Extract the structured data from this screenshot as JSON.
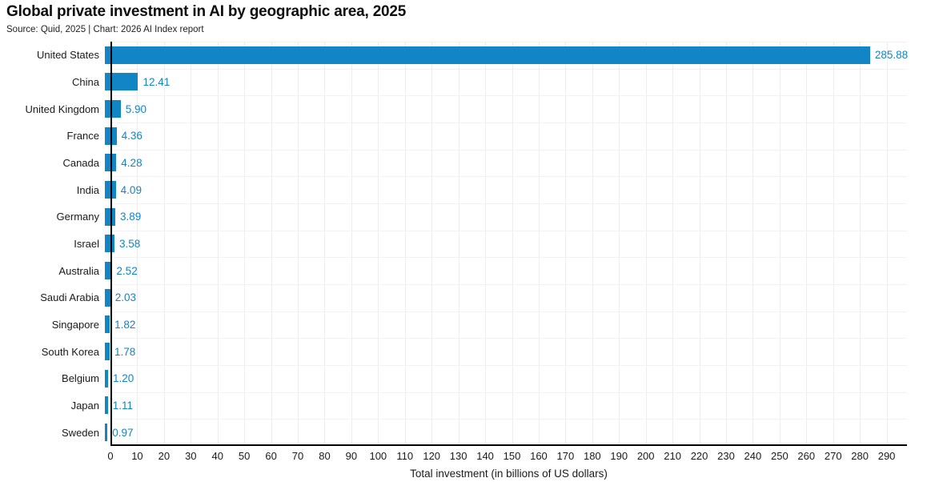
{
  "chart": {
    "title": "Global private investment in AI by geographic area, 2025",
    "subtitle": "Source: Quid, 2025 | Chart: 2026 AI Index report",
    "xlabel": "Total investment (in billions of US dollars)"
  },
  "chart_data": {
    "type": "bar",
    "orientation": "horizontal",
    "title": "Global private investment in AI by geographic area, 2025",
    "subtitle": "Source: Quid, 2025 | Chart: 2026 AI Index report",
    "xlabel": "Total investment (in billions of US dollars)",
    "ylabel": "",
    "categories": [
      "United States",
      "China",
      "United Kingdom",
      "France",
      "Canada",
      "India",
      "Germany",
      "Israel",
      "Australia",
      "Saudi Arabia",
      "Singapore",
      "South Korea",
      "Belgium",
      "Japan",
      "Sweden"
    ],
    "values": [
      285.88,
      12.41,
      5.9,
      4.36,
      4.28,
      4.09,
      3.89,
      3.58,
      2.52,
      2.03,
      1.82,
      1.78,
      1.2,
      1.11,
      0.97
    ],
    "xticks": [
      0,
      10,
      20,
      30,
      40,
      50,
      60,
      70,
      80,
      90,
      100,
      110,
      120,
      130,
      140,
      150,
      160,
      170,
      180,
      190,
      200,
      210,
      220,
      230,
      240,
      250,
      260,
      270,
      280,
      290
    ],
    "xlim": [
      0,
      290
    ],
    "grid": true,
    "legend": "none",
    "bar_color": "#1285c6",
    "value_label_color": "#1285c6",
    "axis_color": "#000000",
    "grid_color": "#ededed"
  }
}
